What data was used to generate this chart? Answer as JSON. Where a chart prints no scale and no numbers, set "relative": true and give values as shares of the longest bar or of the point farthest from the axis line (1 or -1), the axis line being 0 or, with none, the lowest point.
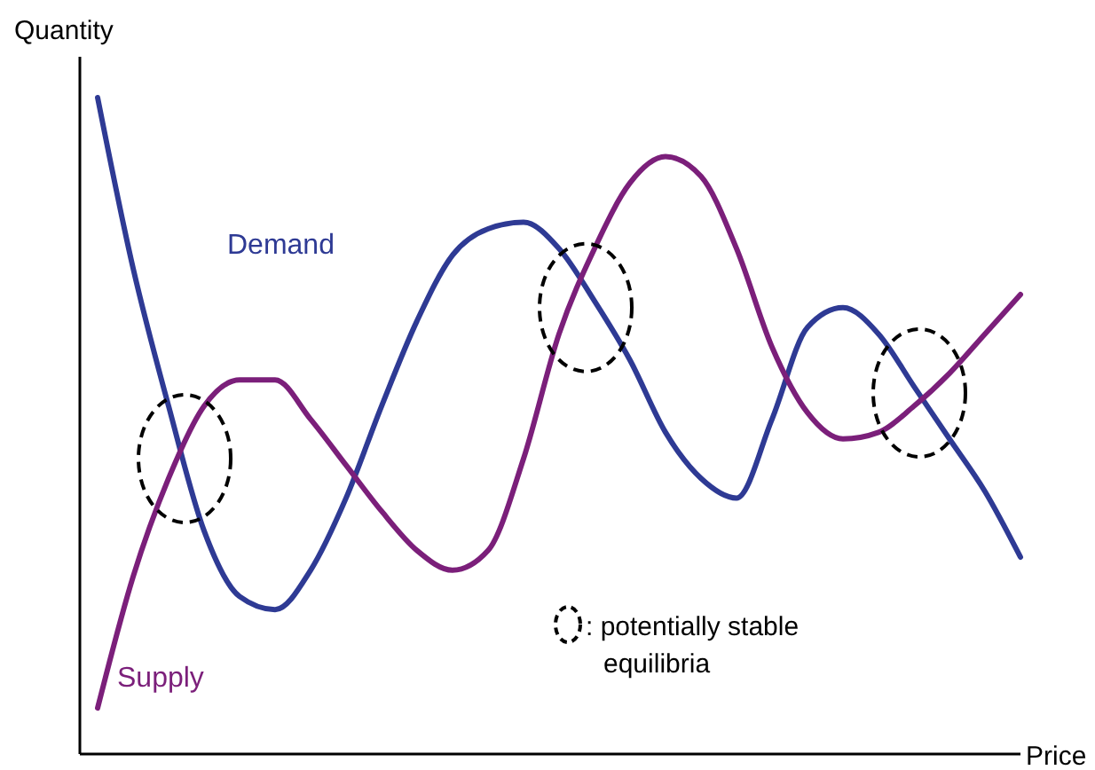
{
  "chart_data": {
    "type": "line",
    "relative": true,
    "xlabel": "Price",
    "ylabel": "Quantity",
    "categories": [
      null,
      null,
      null,
      null,
      null,
      null,
      null,
      null,
      null,
      null,
      null,
      null,
      null,
      null,
      null,
      null,
      null,
      null,
      null,
      null,
      null,
      null,
      null,
      null,
      null,
      null,
      null
    ],
    "series": [
      {
        "name": "Demand",
        "color": "#2e3a94",
        "values": [
          1.0,
          0.74,
          0.53,
          0.34,
          0.24,
          0.22,
          0.28,
          0.39,
          0.53,
          0.66,
          0.76,
          0.8,
          0.81,
          0.77,
          0.69,
          0.6,
          0.49,
          0.42,
          0.39,
          0.51,
          0.65,
          0.68,
          0.64,
          0.56,
          0.48,
          0.4,
          0.3
        ]
      },
      {
        "name": "Supply",
        "color": "#7b1f7a",
        "values": [
          0.07,
          0.27,
          0.42,
          0.53,
          0.57,
          0.57,
          0.51,
          0.44,
          0.37,
          0.31,
          0.28,
          0.31,
          0.45,
          0.64,
          0.77,
          0.87,
          0.91,
          0.88,
          0.77,
          0.62,
          0.52,
          0.48,
          0.49,
          0.53,
          0.58,
          0.64,
          0.7
        ]
      }
    ],
    "annotations": [
      ": potentially stable equilibria"
    ],
    "line_style": "solid"
  }
}
